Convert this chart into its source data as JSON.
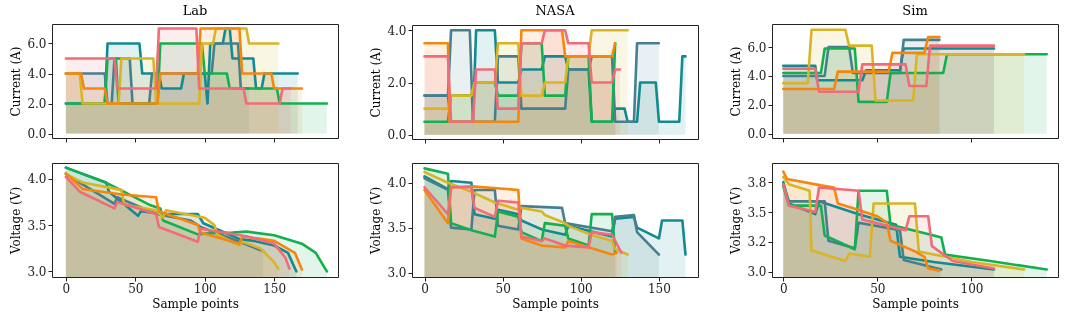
{
  "chart_data": [
    {
      "type": "area",
      "title": "Lab",
      "ylabel": "Current (A)",
      "xlim": [
        -10,
        196
      ],
      "xticks": [
        0,
        50,
        100,
        150
      ],
      "ylim": [
        -0.3,
        7.3
      ],
      "yticks": [
        {
          "value": 0,
          "label": "0.0"
        },
        {
          "value": 2,
          "label": "2.0"
        },
        {
          "value": 4,
          "label": "4.0"
        },
        {
          "value": 6,
          "label": "6.0"
        }
      ],
      "tick_labels": "y",
      "series": [
        {
          "color": "#138a91",
          "x": [
            0,
            28,
            30,
            53,
            55,
            67,
            69,
            83,
            85,
            100,
            102,
            104,
            113,
            115,
            118,
            120,
            135,
            137,
            141,
            143,
            167
          ],
          "values": [
            2,
            2,
            6,
            6,
            4,
            4,
            3,
            3,
            4,
            4,
            2,
            6,
            6,
            7,
            7,
            5,
            5,
            3,
            3,
            4,
            4
          ]
        },
        {
          "color": "#46808e",
          "x": [
            0,
            28,
            30,
            33,
            35,
            46,
            48,
            60,
            62,
            105,
            107,
            124,
            126,
            132
          ],
          "values": [
            4,
            4,
            2,
            2,
            5,
            5,
            2,
            2,
            4,
            4,
            6,
            6,
            3,
            3
          ]
        },
        {
          "color": "#14b050",
          "x": [
            0,
            28,
            30,
            36,
            38,
            66,
            68,
            98,
            100,
            116,
            118,
            152,
            154,
            188
          ],
          "values": [
            2,
            2,
            5,
            5,
            2,
            2,
            6,
            6,
            4,
            4,
            3,
            3,
            2,
            2
          ]
        },
        {
          "color": "#d9b425",
          "x": [
            0,
            10,
            12,
            38,
            40,
            63,
            65,
            96,
            98,
            106,
            108,
            130,
            132,
            153
          ],
          "values": [
            4,
            4,
            2,
            2,
            5,
            5,
            2,
            2,
            6,
            6,
            7,
            7,
            6,
            6
          ]
        },
        {
          "color": "#f5870f",
          "x": [
            0,
            11,
            13,
            28,
            30,
            66,
            68,
            95,
            97,
            125,
            127,
            148,
            150,
            170
          ],
          "values": [
            4,
            4,
            3,
            3,
            2,
            2,
            4,
            4,
            7,
            7,
            4,
            4,
            3,
            3
          ]
        },
        {
          "color": "#f26b78",
          "x": [
            0,
            35,
            37,
            65,
            67,
            94,
            96,
            128,
            130,
            154,
            156,
            162
          ],
          "values": [
            5,
            5,
            3,
            3,
            7,
            7,
            3,
            3,
            2,
            2,
            3,
            3
          ]
        }
      ]
    },
    {
      "type": "area",
      "title": "NASA",
      "ylabel": "Current (A)",
      "xlim": [
        -8,
        175
      ],
      "xticks": [
        0,
        50,
        100,
        150
      ],
      "ylim": [
        -0.16,
        4.2
      ],
      "yticks": [
        {
          "value": 0,
          "label": "0.0"
        },
        {
          "value": 2,
          "label": "2.0"
        },
        {
          "value": 4,
          "label": "4.0"
        }
      ],
      "tick_labels": "y",
      "series": [
        {
          "color": "#138a91",
          "x": [
            0,
            15,
            17,
            31,
            33,
            45,
            47,
            60,
            62,
            75,
            77,
            90,
            92,
            105,
            107,
            120,
            122,
            128,
            130,
            136,
            138,
            148,
            150,
            163,
            165,
            167
          ],
          "values": [
            1.5,
            1.5,
            0.5,
            0.5,
            4,
            4,
            2,
            2,
            2.5,
            2.5,
            3,
            3,
            2.5,
            2.5,
            0.5,
            0.5,
            1,
            1,
            0.5,
            0.5,
            2,
            2,
            0.5,
            0.5,
            3,
            3
          ]
        },
        {
          "color": "#46808e",
          "x": [
            0,
            15,
            17,
            29,
            31,
            45,
            47,
            60,
            62,
            90,
            92,
            105,
            107,
            120,
            122,
            134,
            136,
            150
          ],
          "values": [
            1.5,
            1.5,
            4,
            4,
            0.5,
            0.5,
            3,
            3,
            1,
            1,
            2.5,
            2.5,
            3,
            3,
            0.5,
            0.5,
            3.5,
            3.5
          ]
        },
        {
          "color": "#14b050",
          "x": [
            0,
            15,
            17,
            30,
            32,
            45,
            47,
            60,
            62,
            75,
            77,
            90,
            92,
            105,
            107,
            120,
            122
          ],
          "values": [
            0.5,
            0.5,
            1.5,
            1.5,
            2,
            2,
            1.5,
            1.5,
            3.5,
            3.5,
            1.5,
            1.5,
            3,
            3,
            0.5,
            0.5,
            3.5
          ]
        },
        {
          "color": "#d9b425",
          "x": [
            0,
            15,
            17,
            30,
            32,
            45,
            47,
            60,
            62,
            75,
            77,
            90,
            92,
            105,
            107,
            130
          ],
          "values": [
            1,
            1,
            1.5,
            1.5,
            2,
            2,
            3.5,
            3.5,
            1.5,
            1.5,
            2,
            2,
            3,
            3,
            4,
            4
          ]
        },
        {
          "color": "#f5870f",
          "x": [
            0,
            15,
            16,
            60,
            62,
            88,
            90,
            120,
            122
          ],
          "values": [
            3.5,
            3.5,
            0.5,
            0.5,
            4,
            4,
            3,
            3,
            3.5
          ]
        },
        {
          "color": "#f26b78",
          "x": [
            0,
            15,
            17,
            31,
            33,
            45,
            47,
            60,
            62,
            75,
            77,
            90,
            92,
            105,
            107,
            120,
            122,
            125
          ],
          "values": [
            3,
            3,
            0.5,
            0.5,
            2.5,
            2.5,
            1,
            1,
            3.5,
            3.5,
            4,
            4,
            3.5,
            3.5,
            2,
            2,
            2.5,
            2.5
          ]
        }
      ]
    },
    {
      "type": "area",
      "title": "Sim",
      "ylabel": "Current (A)",
      "xlim": [
        -6,
        146
      ],
      "xticks": [
        0,
        50,
        100
      ],
      "ylim": [
        -0.3,
        7.6
      ],
      "yticks": [
        {
          "value": 0,
          "label": "0.0"
        },
        {
          "value": 2,
          "label": "2.0"
        },
        {
          "value": 4,
          "label": "4.0"
        },
        {
          "value": 6,
          "label": "6.0"
        }
      ],
      "tick_labels": "y",
      "series": [
        {
          "color": "#138a91",
          "x": [
            0,
            17,
            18,
            42,
            44,
            62,
            64,
            112
          ],
          "values": [
            4.7,
            4.7,
            3.7,
            3.7,
            4.4,
            4.4,
            5.9,
            5.9
          ]
        },
        {
          "color": "#46808e",
          "x": [
            0,
            22,
            24,
            35,
            37,
            62,
            64,
            83
          ],
          "values": [
            4,
            4,
            6,
            6,
            4.2,
            4.2,
            6.5,
            6.5
          ]
        },
        {
          "color": "#14b050",
          "x": [
            0,
            20,
            22,
            38,
            40,
            55,
            57,
            85,
            87,
            140
          ],
          "values": [
            4.2,
            4.2,
            5.9,
            5.9,
            2.2,
            2.2,
            4.2,
            4.2,
            5.5,
            5.5
          ]
        },
        {
          "color": "#d9b425",
          "x": [
            0,
            13,
            15,
            33,
            35,
            47,
            49,
            69,
            71,
            128
          ],
          "values": [
            3.5,
            3.5,
            7.2,
            7.2,
            6.1,
            6.1,
            2.3,
            2.3,
            5.5,
            5.5
          ]
        },
        {
          "color": "#f5870f",
          "x": [
            0,
            27,
            29,
            56,
            58,
            75,
            77,
            83
          ],
          "values": [
            3.1,
            3.1,
            4.3,
            4.3,
            5.6,
            5.6,
            6.7,
            6.7
          ]
        },
        {
          "color": "#f26b78",
          "x": [
            0,
            17,
            19,
            40,
            42,
            65,
            67,
            76,
            78,
            112
          ],
          "values": [
            4.5,
            4.5,
            2.9,
            2.9,
            4.8,
            4.8,
            3.3,
            3.3,
            6.1,
            6.1
          ]
        }
      ]
    },
    {
      "type": "area",
      "xlabel": "Sample points",
      "ylabel": "Voltage (V)",
      "xlim": [
        -10,
        196
      ],
      "xticks": [
        0,
        50,
        100,
        150
      ],
      "ylim": [
        2.94,
        4.17
      ],
      "yticks": [
        {
          "value": 3,
          "label": "3.0"
        },
        {
          "value": 3.5,
          "label": "3.5"
        },
        {
          "value": 4,
          "label": "4.0"
        }
      ],
      "series": [
        {
          "color": "#138a91",
          "x": [
            0,
            29,
            31,
            52,
            54,
            70,
            95,
            99,
            125,
            135,
            150,
            160,
            166
          ],
          "values": [
            4.12,
            3.96,
            3.86,
            3.6,
            3.65,
            3.62,
            3.62,
            3.52,
            3.35,
            3.33,
            3.28,
            3.2,
            3.0
          ]
        },
        {
          "color": "#46808e",
          "x": [
            0,
            35,
            37,
            65,
            90,
            97,
            125,
            142
          ],
          "values": [
            4.05,
            3.73,
            3.8,
            3.62,
            3.55,
            3.48,
            3.32,
            3.22
          ]
        },
        {
          "color": "#14b050",
          "x": [
            0,
            30,
            60,
            68,
            70,
            95,
            100,
            120,
            130,
            150,
            170,
            180,
            186,
            188
          ],
          "values": [
            4.12,
            3.95,
            3.72,
            3.68,
            3.55,
            3.4,
            3.41,
            3.42,
            3.43,
            3.39,
            3.3,
            3.2,
            3.05,
            3.0
          ]
        },
        {
          "color": "#d9b425",
          "x": [
            0,
            12,
            40,
            42,
            65,
            70,
            72,
            100,
            107,
            109,
            125,
            127,
            140,
            150,
            153
          ],
          "values": [
            4.05,
            3.96,
            3.88,
            3.72,
            3.66,
            3.58,
            3.66,
            3.58,
            3.5,
            3.4,
            3.28,
            3.32,
            3.25,
            3.1,
            3.03
          ]
        },
        {
          "color": "#f5870f",
          "x": [
            0,
            10,
            12,
            40,
            65,
            67,
            95,
            97,
            125,
            127,
            150,
            165,
            170
          ],
          "values": [
            4.06,
            3.92,
            3.89,
            3.83,
            3.8,
            3.65,
            3.5,
            3.42,
            3.3,
            3.38,
            3.33,
            3.2,
            3.02
          ]
        },
        {
          "color": "#f26b78",
          "x": [
            0,
            10,
            35,
            37,
            65,
            67,
            95,
            97,
            130,
            150,
            158,
            161
          ],
          "values": [
            4.02,
            3.86,
            3.68,
            3.75,
            3.62,
            3.48,
            3.32,
            3.46,
            3.38,
            3.3,
            3.15,
            3.03
          ]
        }
      ]
    },
    {
      "type": "area",
      "xlabel": "Sample points",
      "ylabel": "Voltage (V)",
      "xlim": [
        -8,
        175
      ],
      "xticks": [
        0,
        50,
        100,
        150
      ],
      "ylim": [
        2.95,
        4.22
      ],
      "yticks": [
        {
          "value": 3,
          "label": "3.0"
        },
        {
          "value": 3.5,
          "label": "3.5"
        },
        {
          "value": 4,
          "label": "4.0"
        }
      ],
      "series": [
        {
          "color": "#138a91",
          "x": [
            0,
            15,
            17,
            30,
            32,
            45,
            47,
            60,
            62,
            75,
            90,
            92,
            120,
            122,
            134,
            136,
            150,
            152,
            165,
            167
          ],
          "values": [
            4.07,
            3.93,
            4.02,
            4.0,
            3.65,
            3.6,
            3.7,
            3.65,
            3.58,
            3.48,
            3.42,
            3.52,
            3.4,
            3.6,
            3.62,
            3.5,
            3.38,
            3.58,
            3.58,
            3.2
          ]
        },
        {
          "color": "#46808e",
          "x": [
            0,
            15,
            17,
            30,
            32,
            45,
            47,
            60,
            62,
            88,
            90,
            120,
            122,
            134,
            136,
            150
          ],
          "values": [
            4.05,
            3.92,
            3.5,
            3.48,
            3.92,
            3.92,
            3.52,
            3.48,
            3.74,
            3.72,
            3.55,
            3.46,
            3.62,
            3.64,
            3.45,
            3.2
          ]
        },
        {
          "color": "#14b050",
          "x": [
            0,
            15,
            17,
            30,
            45,
            47,
            60,
            62,
            75,
            77,
            90,
            92,
            105,
            107,
            120,
            122
          ],
          "values": [
            4.16,
            4.1,
            3.55,
            3.47,
            3.4,
            3.68,
            3.62,
            3.45,
            3.35,
            3.55,
            3.52,
            3.38,
            3.3,
            3.65,
            3.65,
            3.22
          ]
        },
        {
          "color": "#d9b425",
          "x": [
            0,
            15,
            30,
            45,
            60,
            62,
            75,
            77,
            90,
            92,
            105,
            120,
            122,
            130
          ],
          "values": [
            4.12,
            4.0,
            3.9,
            3.78,
            3.7,
            3.72,
            3.68,
            3.64,
            3.55,
            3.52,
            3.43,
            3.35,
            3.26,
            3.2
          ]
        },
        {
          "color": "#f5870f",
          "x": [
            0,
            15,
            17,
            30,
            60,
            62,
            75,
            90,
            92,
            120,
            123
          ],
          "values": [
            3.92,
            3.55,
            3.95,
            3.96,
            3.92,
            3.38,
            3.3,
            3.28,
            3.35,
            3.2,
            3.22
          ]
        },
        {
          "color": "#f26b78",
          "x": [
            0,
            15,
            17,
            30,
            32,
            45,
            47,
            60,
            62,
            75,
            77,
            90,
            105,
            107,
            120,
            126
          ],
          "values": [
            3.95,
            3.65,
            3.95,
            3.95,
            3.72,
            3.62,
            3.8,
            3.78,
            3.4,
            3.35,
            3.38,
            3.3,
            3.28,
            3.45,
            3.42,
            3.22
          ]
        }
      ]
    },
    {
      "type": "area",
      "xlabel": "Sample points",
      "ylabel": "Voltage (V)",
      "xlim": [
        -6,
        146
      ],
      "xticks": [
        0,
        50,
        100
      ],
      "ylim": [
        2.91,
        3.98
      ],
      "yticks": [
        {
          "value": 2.96,
          "label": "3.0"
        },
        {
          "value": 3.24,
          "label": "3.2"
        },
        {
          "value": 3.52,
          "label": "3.5"
        },
        {
          "value": 3.8,
          "label": "3.8"
        }
      ],
      "series": [
        {
          "color": "#138a91",
          "x": [
            0,
            3,
            17,
            19,
            40,
            60,
            62,
            80,
            112
          ],
          "values": [
            3.8,
            3.6,
            3.5,
            3.62,
            3.5,
            3.4,
            3.1,
            3.05,
            2.98
          ]
        },
        {
          "color": "#46808e",
          "x": [
            0,
            3,
            22,
            24,
            38,
            40,
            62,
            64,
            84
          ],
          "values": [
            3.78,
            3.62,
            3.62,
            3.25,
            3.18,
            3.42,
            3.35,
            3.07,
            2.98
          ]
        },
        {
          "color": "#14b050",
          "x": [
            0,
            3,
            20,
            22,
            38,
            40,
            55,
            57,
            80,
            84,
            86,
            110,
            140
          ],
          "values": [
            3.76,
            3.58,
            3.58,
            3.3,
            3.17,
            3.72,
            3.72,
            3.4,
            3.3,
            3.28,
            3.12,
            3.06,
            2.98
          ]
        },
        {
          "color": "#d9b425",
          "x": [
            0,
            3,
            14,
            15,
            33,
            35,
            46,
            48,
            70,
            72,
            100,
            128
          ],
          "values": [
            3.85,
            3.78,
            3.72,
            3.16,
            3.06,
            3.13,
            3.1,
            3.6,
            3.6,
            3.15,
            3.05,
            2.98
          ]
        },
        {
          "color": "#f5870f",
          "x": [
            0,
            2,
            20,
            27,
            29,
            38,
            50,
            55,
            57,
            70,
            75,
            77,
            83
          ],
          "values": [
            3.9,
            3.83,
            3.77,
            3.75,
            3.6,
            3.55,
            3.48,
            3.42,
            3.25,
            3.15,
            3.1,
            2.99,
            2.97
          ]
        },
        {
          "color": "#f26b78",
          "x": [
            0,
            3,
            17,
            19,
            40,
            42,
            60,
            65,
            67,
            77,
            79,
            90,
            112
          ],
          "values": [
            3.78,
            3.58,
            3.52,
            3.75,
            3.72,
            3.45,
            3.37,
            3.35,
            3.48,
            3.48,
            3.2,
            3.06,
            2.99
          ]
        }
      ]
    }
  ]
}
